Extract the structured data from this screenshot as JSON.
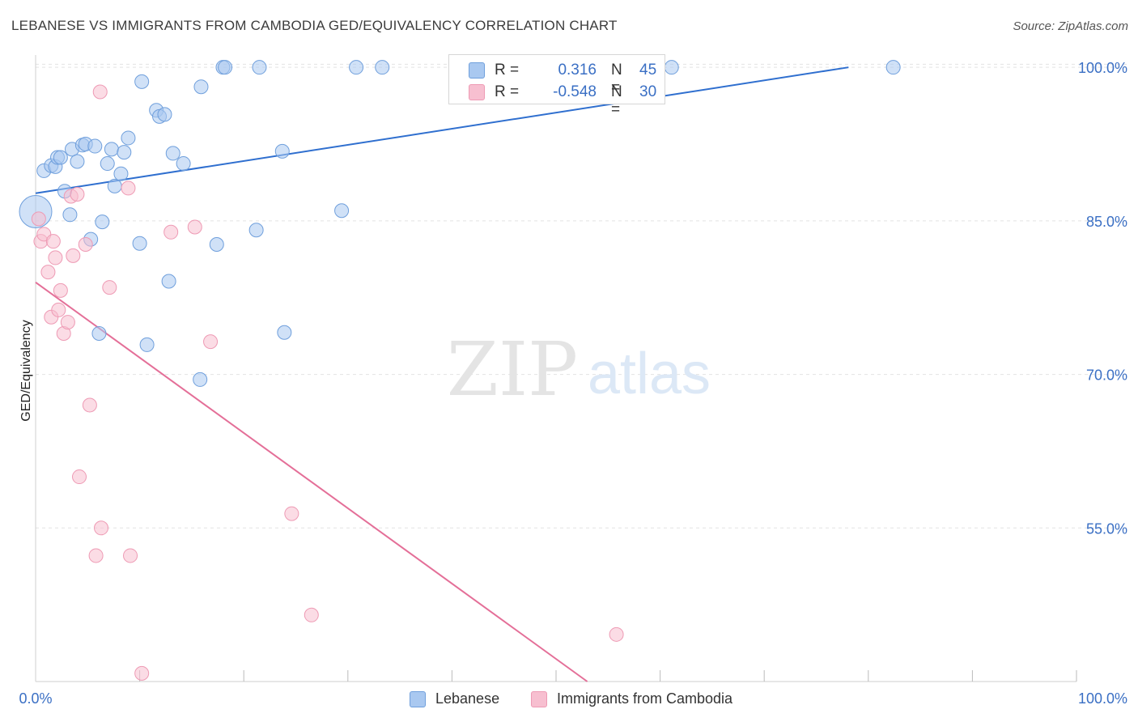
{
  "title": "LEBANESE VS IMMIGRANTS FROM CAMBODIA GED/EQUIVALENCY CORRELATION CHART",
  "source": "Source: ZipAtlas.com",
  "watermark": {
    "zip": "ZIP",
    "atlas": "atlas"
  },
  "colors": {
    "blue_fill": "#a9c8f0",
    "blue_stroke": "#6f9fdc",
    "blue_line": "#2f6fcf",
    "pink_fill": "#f7bfd0",
    "pink_stroke": "#ee9ab4",
    "pink_line": "#e46f98",
    "tick_label": "#3a6fc4",
    "grid": "#e3e3e3"
  },
  "legend_top": [
    {
      "r_label": "R =",
      "r_value": "0.316",
      "n_label": "N =",
      "n_value": "45"
    },
    {
      "r_label": "R =",
      "r_value": "-0.548",
      "n_label": "N =",
      "n_value": "30"
    }
  ],
  "legend_bottom": [
    {
      "label": "Lebanese"
    },
    {
      "label": "Immigrants from Cambodia"
    }
  ],
  "chart_data": {
    "type": "scatter",
    "title": "LEBANESE VS IMMIGRANTS FROM CAMBODIA GED/EQUIVALENCY CORRELATION CHART",
    "xlabel": "",
    "ylabel": "GED/Equivalency",
    "xlim": [
      0,
      100
    ],
    "ylim": [
      40,
      101.2
    ],
    "x_tick_labels": [
      "0.0%",
      "100.0%"
    ],
    "y_ticks": [
      55,
      70,
      85,
      100
    ],
    "y_tick_labels": [
      "55.0%",
      "70.0%",
      "85.0%",
      "100.0%"
    ],
    "grid": true,
    "series": [
      {
        "name": "Lebanese",
        "r": 0.316,
        "n": 45,
        "trend": {
          "x": [
            0,
            78.1
          ],
          "y": [
            87.7,
            100.0
          ]
        },
        "points": [
          {
            "x": 0.0,
            "y": 85.9,
            "big": true
          },
          {
            "x": 0.8,
            "y": 89.9
          },
          {
            "x": 1.5,
            "y": 90.4
          },
          {
            "x": 1.9,
            "y": 90.3
          },
          {
            "x": 2.1,
            "y": 91.2
          },
          {
            "x": 2.4,
            "y": 91.2
          },
          {
            "x": 2.8,
            "y": 87.9
          },
          {
            "x": 3.3,
            "y": 85.6
          },
          {
            "x": 3.5,
            "y": 92.0
          },
          {
            "x": 4.0,
            "y": 90.8
          },
          {
            "x": 4.5,
            "y": 92.4
          },
          {
            "x": 4.8,
            "y": 92.5
          },
          {
            "x": 5.3,
            "y": 83.2
          },
          {
            "x": 5.7,
            "y": 92.3
          },
          {
            "x": 6.1,
            "y": 74.0
          },
          {
            "x": 6.4,
            "y": 84.9
          },
          {
            "x": 6.9,
            "y": 90.6
          },
          {
            "x": 7.3,
            "y": 92.0
          },
          {
            "x": 7.6,
            "y": 88.4
          },
          {
            "x": 8.2,
            "y": 89.6
          },
          {
            "x": 8.5,
            "y": 91.7
          },
          {
            "x": 8.9,
            "y": 93.1
          },
          {
            "x": 10.0,
            "y": 82.8
          },
          {
            "x": 10.2,
            "y": 98.6
          },
          {
            "x": 10.7,
            "y": 72.9
          },
          {
            "x": 11.6,
            "y": 95.8
          },
          {
            "x": 11.9,
            "y": 95.2
          },
          {
            "x": 12.4,
            "y": 95.4
          },
          {
            "x": 12.8,
            "y": 79.1
          },
          {
            "x": 13.2,
            "y": 91.6
          },
          {
            "x": 14.2,
            "y": 90.6
          },
          {
            "x": 15.8,
            "y": 69.5
          },
          {
            "x": 15.9,
            "y": 98.1
          },
          {
            "x": 17.4,
            "y": 82.7
          },
          {
            "x": 18.0,
            "y": 100.0
          },
          {
            "x": 18.2,
            "y": 100.0
          },
          {
            "x": 21.2,
            "y": 84.1
          },
          {
            "x": 21.5,
            "y": 100.0
          },
          {
            "x": 23.7,
            "y": 91.8
          },
          {
            "x": 23.9,
            "y": 74.1
          },
          {
            "x": 29.4,
            "y": 86.0
          },
          {
            "x": 30.8,
            "y": 100.0
          },
          {
            "x": 33.3,
            "y": 100.0
          },
          {
            "x": 61.1,
            "y": 100.0
          },
          {
            "x": 82.4,
            "y": 100.0
          }
        ]
      },
      {
        "name": "Immigrants from Cambodia",
        "r": -0.548,
        "n": 30,
        "trend": {
          "x": [
            0,
            53.0
          ],
          "y": [
            79.0,
            40.0
          ]
        },
        "points": [
          {
            "x": 0.3,
            "y": 85.2
          },
          {
            "x": 0.5,
            "y": 83.0
          },
          {
            "x": 0.8,
            "y": 83.7
          },
          {
            "x": 1.2,
            "y": 80.0
          },
          {
            "x": 1.5,
            "y": 75.6
          },
          {
            "x": 1.7,
            "y": 83.0
          },
          {
            "x": 1.9,
            "y": 81.4
          },
          {
            "x": 2.2,
            "y": 76.3
          },
          {
            "x": 2.4,
            "y": 78.2
          },
          {
            "x": 2.7,
            "y": 74.0
          },
          {
            "x": 3.1,
            "y": 75.1
          },
          {
            "x": 3.4,
            "y": 87.4
          },
          {
            "x": 3.6,
            "y": 81.6
          },
          {
            "x": 4.0,
            "y": 87.6
          },
          {
            "x": 4.2,
            "y": 60.0
          },
          {
            "x": 4.8,
            "y": 82.7
          },
          {
            "x": 5.2,
            "y": 67.0
          },
          {
            "x": 5.8,
            "y": 52.3
          },
          {
            "x": 6.3,
            "y": 55.0
          },
          {
            "x": 6.2,
            "y": 97.6
          },
          {
            "x": 7.1,
            "y": 78.5
          },
          {
            "x": 8.9,
            "y": 88.2
          },
          {
            "x": 9.1,
            "y": 52.3
          },
          {
            "x": 10.2,
            "y": 40.8
          },
          {
            "x": 13.0,
            "y": 83.9
          },
          {
            "x": 15.3,
            "y": 84.4
          },
          {
            "x": 16.8,
            "y": 73.2
          },
          {
            "x": 24.6,
            "y": 56.4
          },
          {
            "x": 26.5,
            "y": 46.5
          },
          {
            "x": 55.8,
            "y": 44.6
          }
        ]
      }
    ]
  }
}
